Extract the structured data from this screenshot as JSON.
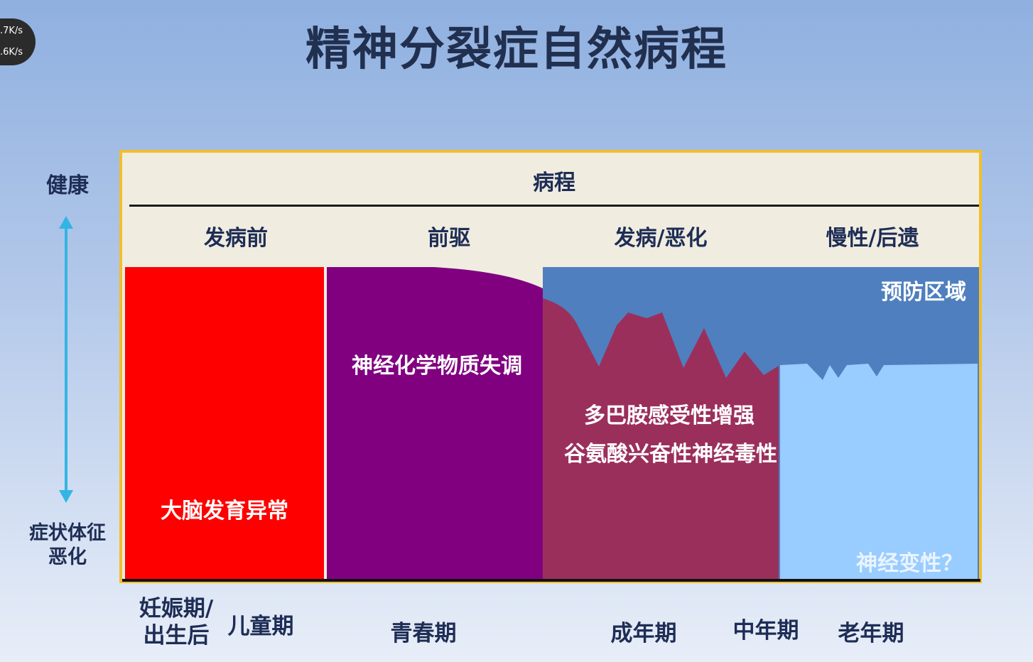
{
  "title": "精神分裂症自然病程",
  "speed_badge": {
    "upload": ".7K/s",
    "download": ".6K/s"
  },
  "y_axis": {
    "top_label": "健康",
    "bottom_label": [
      "症状体征",
      "恶化"
    ]
  },
  "header": {
    "title": "病程",
    "stages": [
      "发病前",
      "前驱",
      "发病/恶化",
      "慢性/后遗"
    ]
  },
  "regions": {
    "premorbid": "大脑发育异常",
    "prodrome": "神经化学物质失调",
    "onset_line1": "多巴胺感受性增强",
    "onset_line2": "谷氨酸兴奋性神经毒性",
    "prevention": "预防区域",
    "chronic": "神经变性？"
  },
  "age_periods": [
    "妊娠期/",
    "出生后",
    "儿童期",
    "青春期",
    "成年期",
    "中年期",
    "老年期"
  ],
  "colors": {
    "premorbid": "#ff0000",
    "prodrome": "#800080",
    "onset": "#9b2f5c",
    "prevention": "#4f7fbe",
    "chronic": "#99ccff",
    "frame_border": "#f2be2d",
    "arrow": "#34b4e4"
  }
}
